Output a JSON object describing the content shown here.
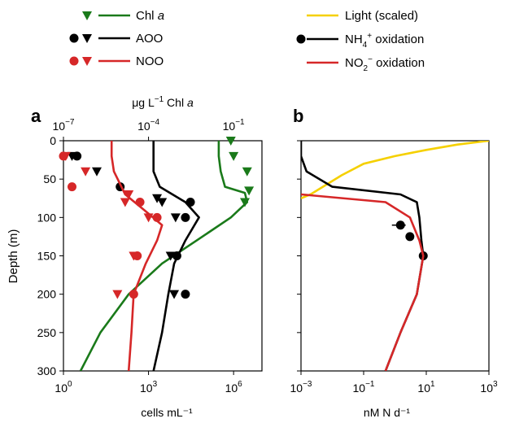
{
  "colors": {
    "green": "#1a7a1a",
    "black": "#000000",
    "red": "#d62728",
    "yellow": "#f5d000"
  },
  "legend_left": [
    {
      "label_main": "Chl ",
      "label_italic": "a",
      "markers": [
        "triangle"
      ],
      "color": "#1a7a1a"
    },
    {
      "label_main": "AOO",
      "label_italic": "",
      "markers": [
        "circle",
        "triangle"
      ],
      "color": "#000000"
    },
    {
      "label_main": "NOO",
      "label_italic": "",
      "markers": [
        "circle",
        "triangle"
      ],
      "color": "#d62728"
    }
  ],
  "legend_right": [
    {
      "label": "Light (scaled)",
      "color": "#f5d000",
      "marker": "none"
    },
    {
      "label_base": "NH",
      "label_sub": "4",
      "label_sup": "+",
      "label_tail": " oxidation",
      "color": "#000000",
      "marker": "circle"
    },
    {
      "label_base": "NO",
      "label_sub": "2",
      "label_sup": "−",
      "label_tail": " oxidation",
      "color": "#d62728",
      "marker": "none"
    }
  ],
  "chart_data": [
    {
      "panel": "a",
      "type": "line",
      "title": "",
      "ylabel": "Depth (m)",
      "ylim": [
        0,
        300
      ],
      "y_inverted": true,
      "yticks": [
        0,
        50,
        100,
        150,
        200,
        250,
        300
      ],
      "xlabel": "cells mL⁻¹",
      "xscale": "log",
      "xlim": [
        1,
        10000000
      ],
      "xticks": [
        {
          "base": "10",
          "exp": "0",
          "value": 1
        },
        {
          "base": "10",
          "exp": "3",
          "value": 1000
        },
        {
          "base": "10",
          "exp": "6",
          "value": 1000000
        }
      ],
      "top_axis": {
        "label_main": "μg L",
        "label_sup": "−1",
        "label_tail": " Chl ",
        "label_italic": "a",
        "xscale": "log",
        "xlim": [
          1e-07,
          1
        ],
        "ticks": [
          {
            "base": "10",
            "exp": "−7",
            "value": 1e-07
          },
          {
            "base": "10",
            "exp": "−4",
            "value": 0.0001
          },
          {
            "base": "10",
            "exp": "−1",
            "value": 0.1
          }
        ]
      },
      "series": [
        {
          "name": "Chl a",
          "axis": "top",
          "color": "#1a7a1a",
          "marker": "triangle",
          "points": [
            [
              0.08,
              0
            ],
            [
              0.1,
              20
            ],
            [
              0.3,
              40
            ],
            [
              0.35,
              65
            ],
            [
              0.25,
              80
            ]
          ],
          "curve": [
            [
              0.03,
              0
            ],
            [
              0.03,
              20
            ],
            [
              0.035,
              40
            ],
            [
              0.05,
              60
            ],
            [
              0.25,
              68
            ],
            [
              0.3,
              80
            ],
            [
              0.08,
              100
            ],
            [
              0.005,
              130
            ],
            [
              0.0003,
              160
            ],
            [
              2e-05,
              200
            ],
            [
              2e-06,
              250
            ],
            [
              4e-07,
              300
            ]
          ]
        },
        {
          "name": "AOO",
          "axis": "bottom",
          "color": "#000000",
          "points_circle": [
            [
              3,
              20
            ],
            [
              100,
              60
            ],
            [
              30000,
              80
            ],
            [
              20000,
              100
            ],
            [
              10000,
              150
            ],
            [
              20000,
              200
            ]
          ],
          "points_triangle": [
            [
              2,
              20
            ],
            [
              15,
              40
            ],
            [
              2000,
              75
            ],
            [
              3000,
              80
            ],
            [
              9000,
              100
            ],
            [
              6000,
              150
            ],
            [
              8000,
              200
            ]
          ],
          "curve": [
            [
              1500,
              0
            ],
            [
              1500,
              20
            ],
            [
              1500,
              40
            ],
            [
              2500,
              60
            ],
            [
              20000,
              80
            ],
            [
              60000,
              100
            ],
            [
              20000,
              130
            ],
            [
              8000,
              160
            ],
            [
              5000,
              200
            ],
            [
              3000,
              250
            ],
            [
              1500,
              300
            ]
          ]
        },
        {
          "name": "NOO",
          "axis": "bottom",
          "color": "#d62728",
          "points_circle": [
            [
              1,
              20
            ],
            [
              2,
              60
            ],
            [
              500,
              80
            ],
            [
              2000,
              100
            ],
            [
              400,
              150
            ],
            [
              300,
              200
            ]
          ],
          "points_triangle": [
            [
              1.2,
              20
            ],
            [
              6,
              40
            ],
            [
              200,
              70
            ],
            [
              150,
              80
            ],
            [
              1000,
              100
            ],
            [
              300,
              150
            ],
            [
              80,
              200
            ]
          ],
          "curve": [
            [
              50,
              0
            ],
            [
              50,
              20
            ],
            [
              60,
              40
            ],
            [
              150,
              70
            ],
            [
              1000,
              95
            ],
            [
              3000,
              110
            ],
            [
              2000,
              130
            ],
            [
              800,
              160
            ],
            [
              300,
              200
            ],
            [
              250,
              250
            ],
            [
              200,
              300
            ]
          ]
        }
      ]
    },
    {
      "panel": "b",
      "type": "line",
      "title": "",
      "ylabel": "",
      "ylim": [
        0,
        300
      ],
      "y_inverted": true,
      "xlabel": "nM N  d⁻¹",
      "xscale": "log",
      "xlim": [
        0.001,
        1000
      ],
      "xticks": [
        {
          "base": "10",
          "exp": "−3",
          "value": 0.001
        },
        {
          "base": "10",
          "exp": "−1",
          "value": 0.1
        },
        {
          "base": "10",
          "exp": "1",
          "value": 10
        },
        {
          "base": "10",
          "exp": "3",
          "value": 1000
        }
      ],
      "series": [
        {
          "name": "Light (scaled)",
          "color": "#f5d000",
          "curve": [
            [
              1000,
              0
            ],
            [
              100,
              5
            ],
            [
              10,
              12
            ],
            [
              1,
              20
            ],
            [
              0.1,
              30
            ],
            [
              0.02,
              45
            ],
            [
              0.005,
              60
            ],
            [
              0.002,
              70
            ],
            [
              0.001,
              75
            ]
          ]
        },
        {
          "name": "NH4+ oxidation",
          "color": "#000000",
          "marker": "circle",
          "points": [
            [
              1.5,
              110
            ],
            [
              3,
              125
            ],
            [
              8,
              150
            ]
          ],
          "error_bars": [
            [
              [
                0.8,
                2.2
              ],
              110
            ]
          ],
          "curve": [
            [
              0.001,
              0
            ],
            [
              0.001,
              20
            ],
            [
              0.0015,
              40
            ],
            [
              0.01,
              60
            ],
            [
              1.5,
              70
            ],
            [
              5,
              80
            ],
            [
              6,
              100
            ],
            [
              7,
              130
            ],
            [
              8,
              150
            ],
            [
              5,
              200
            ],
            [
              1.5,
              250
            ],
            [
              0.5,
              300
            ]
          ]
        },
        {
          "name": "NO2- oxidation",
          "color": "#d62728",
          "curve": [
            [
              0.001,
              70
            ],
            [
              0.5,
              80
            ],
            [
              3,
              100
            ],
            [
              6,
              130
            ],
            [
              8,
              150
            ],
            [
              5,
              200
            ],
            [
              1.5,
              250
            ],
            [
              0.5,
              300
            ]
          ]
        }
      ]
    }
  ]
}
